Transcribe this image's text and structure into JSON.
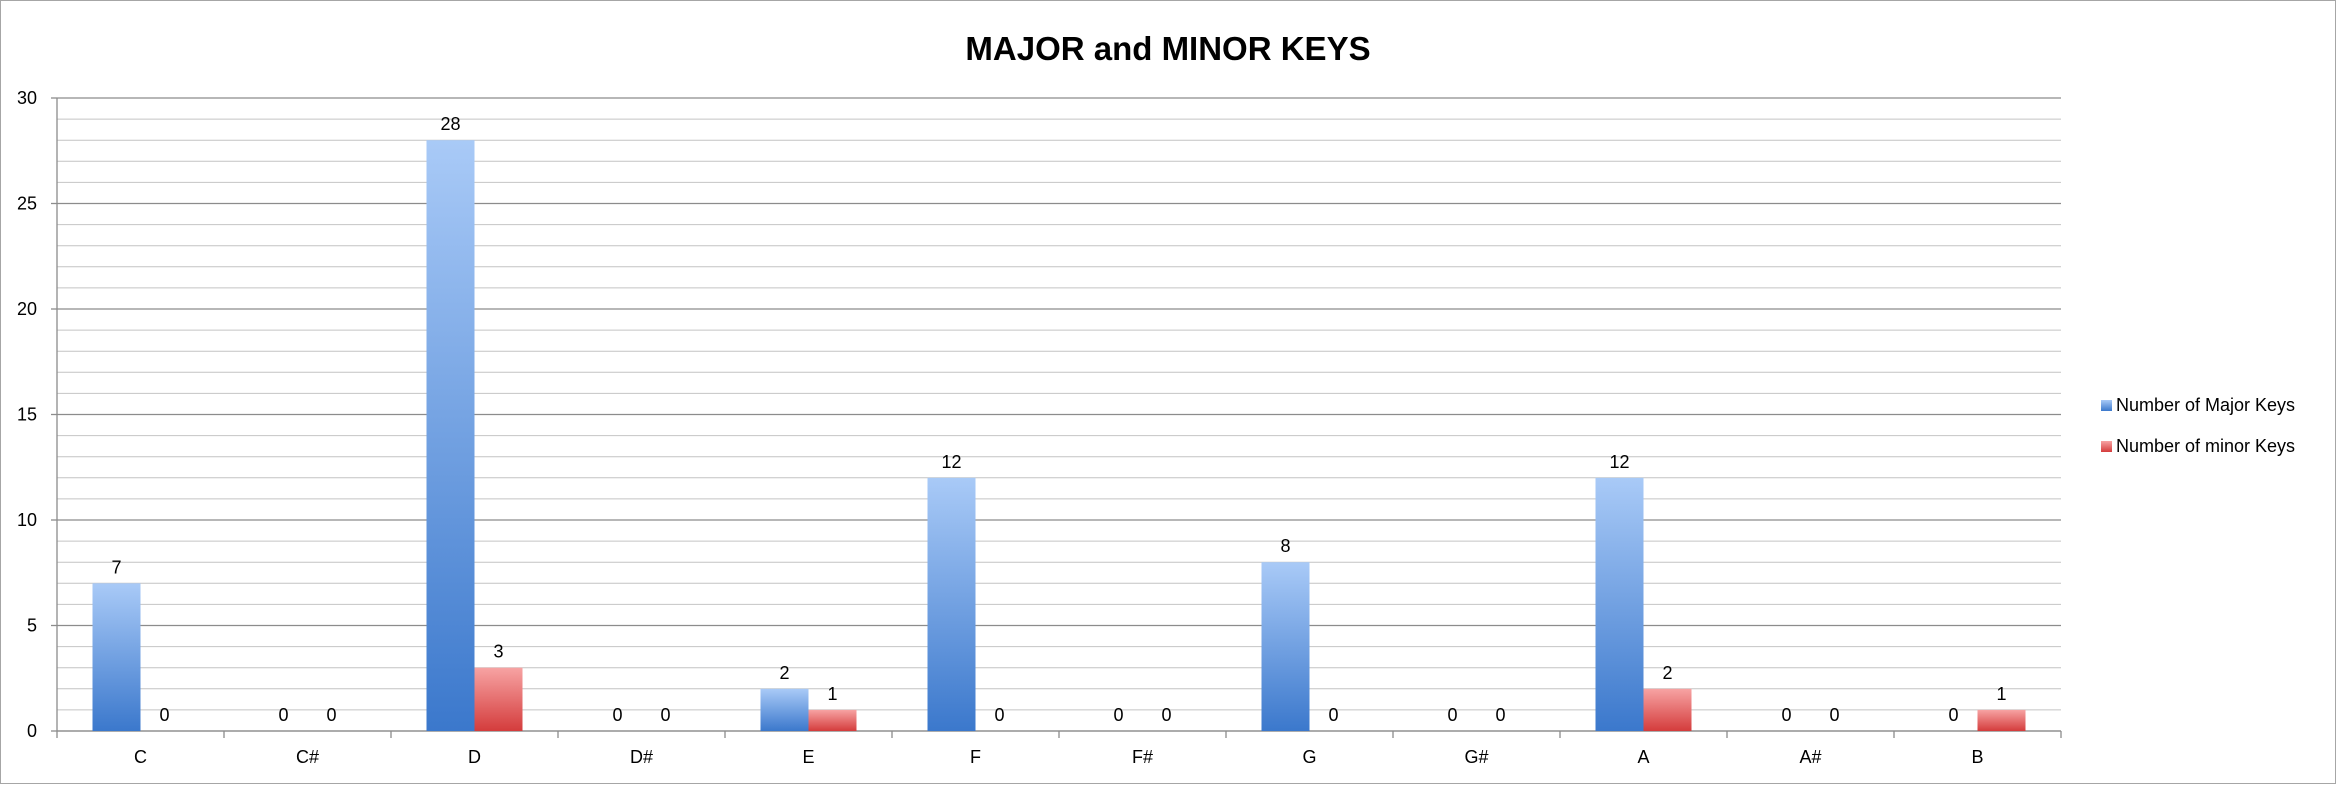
{
  "chart_data": {
    "type": "bar",
    "title": "MAJOR and MINOR KEYS",
    "xlabel": "",
    "ylabel": "",
    "categories": [
      "C",
      "C#",
      "D",
      "D#",
      "E",
      "F",
      "F#",
      "G",
      "G#",
      "A",
      "A#",
      "B"
    ],
    "series": [
      {
        "name": "Number of Major Keys",
        "values": [
          7,
          0,
          28,
          0,
          2,
          12,
          0,
          8,
          0,
          12,
          0,
          0
        ],
        "color": "#4a86d4"
      },
      {
        "name": "Number of minor Keys",
        "values": [
          0,
          0,
          3,
          0,
          1,
          0,
          0,
          0,
          0,
          2,
          0,
          1
        ],
        "color": "#e04848"
      }
    ],
    "ylim": [
      0,
      30
    ],
    "yticks": [
      0,
      5,
      10,
      15,
      20,
      25,
      30
    ],
    "minor_grid_step": 1,
    "grid": true,
    "data_labels": true,
    "legend_position": "right"
  }
}
